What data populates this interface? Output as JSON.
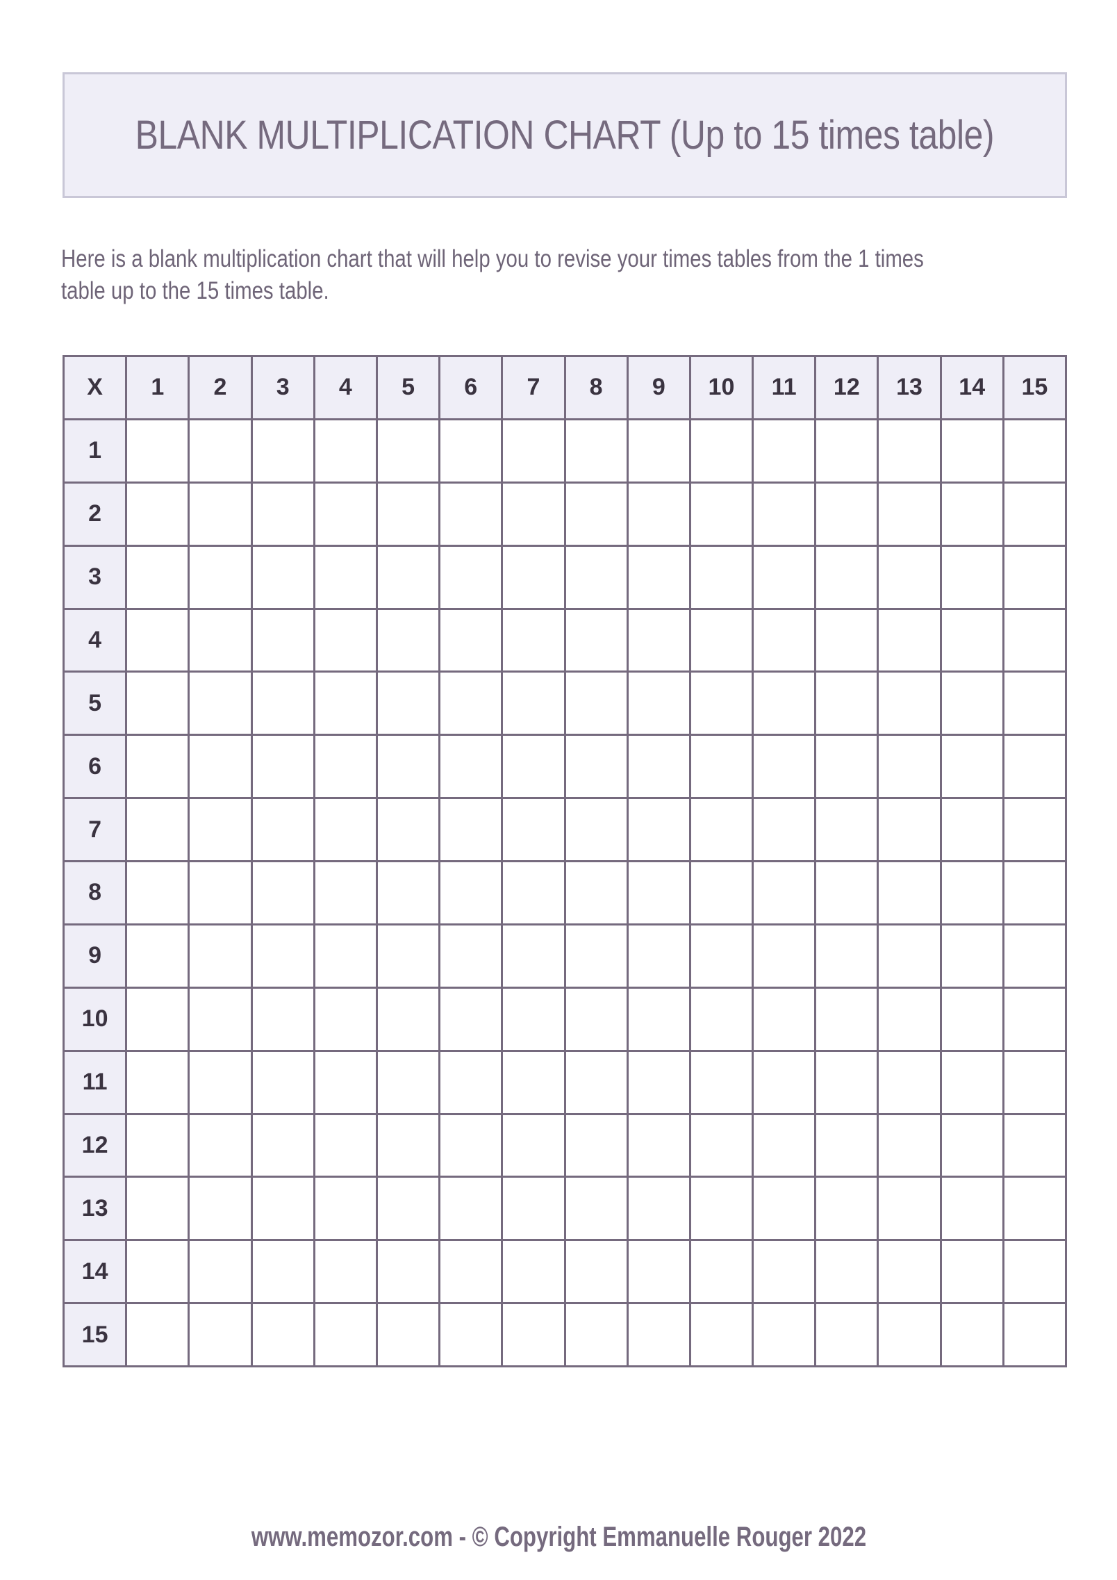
{
  "title": "BLANK MULTIPLICATION CHART (Up to 15 times table)",
  "intro_lines": [
    "Here is a blank multiplication chart that will help you to revise your times tables from the 1 times",
    "table up to the 15 times table."
  ],
  "table": {
    "corner": "X",
    "column_headers": [
      "1",
      "2",
      "3",
      "4",
      "5",
      "6",
      "7",
      "8",
      "9",
      "10",
      "11",
      "12",
      "13",
      "14",
      "15"
    ],
    "row_headers": [
      "1",
      "2",
      "3",
      "4",
      "5",
      "6",
      "7",
      "8",
      "9",
      "10",
      "11",
      "12",
      "13",
      "14",
      "15"
    ]
  },
  "footer": {
    "site": "www.memozor.com",
    "separator": " - ",
    "copyright": "© Copyright Emmanuelle Rouger 2022"
  },
  "colors": {
    "header_bg": "#efeef7",
    "grid_line": "#756a7e",
    "text": "#756a7e"
  }
}
